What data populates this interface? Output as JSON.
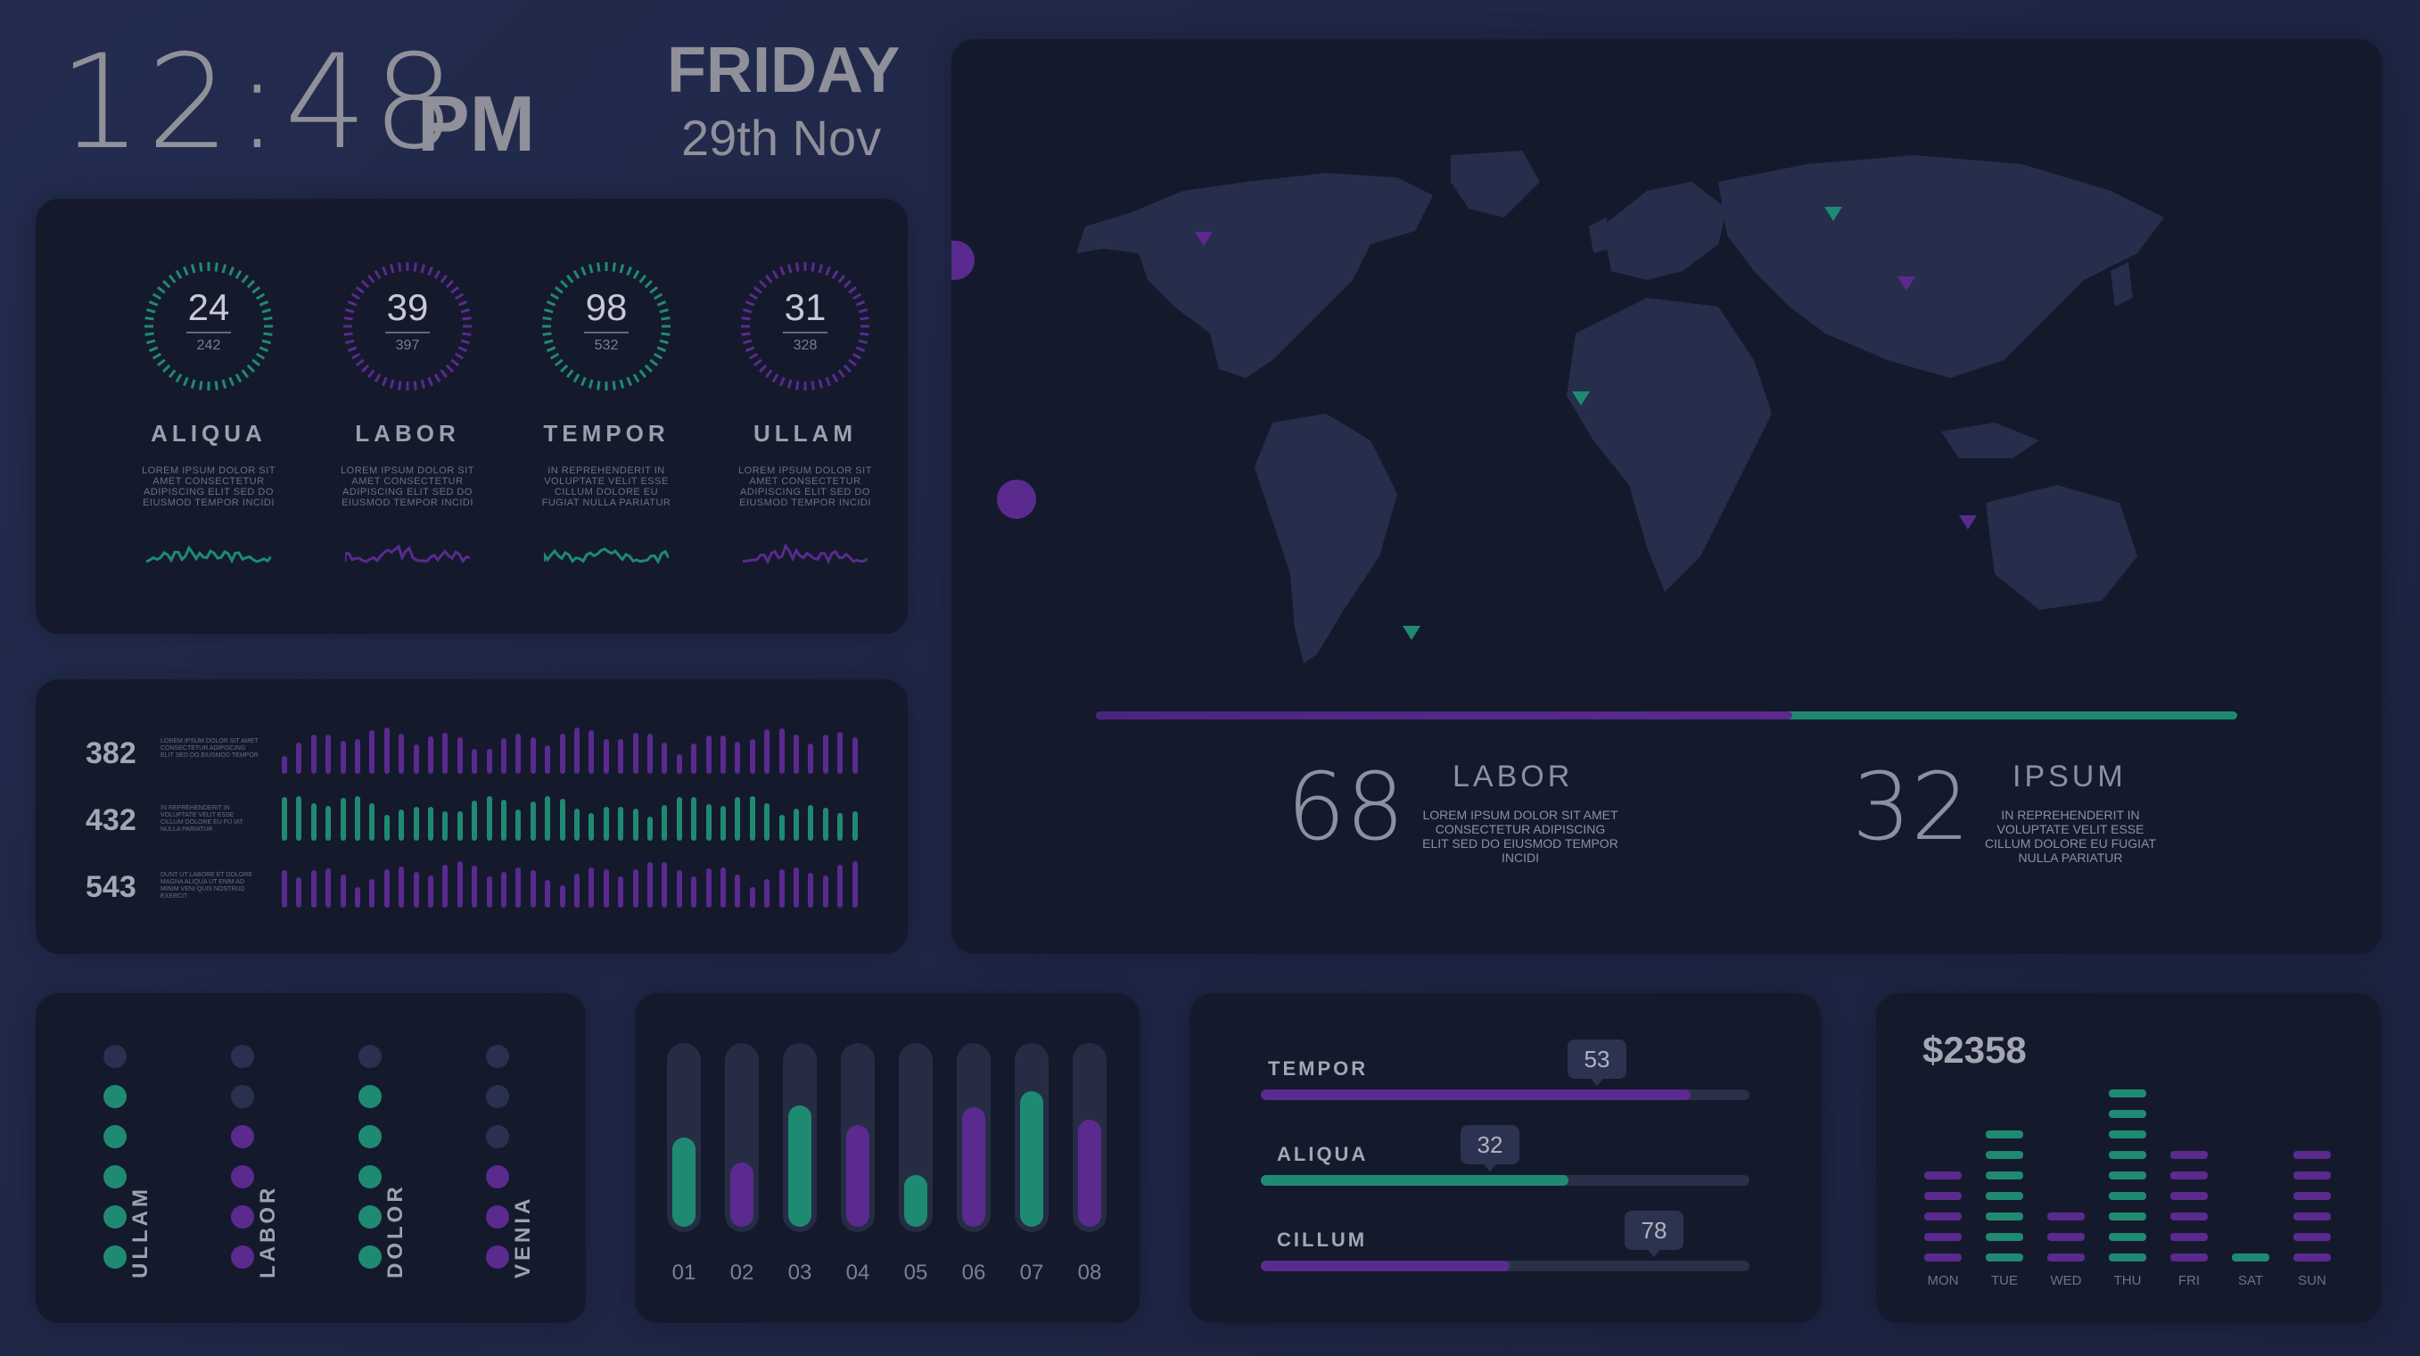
{
  "clock": {
    "time": "12:48",
    "ampm": "PM",
    "day": "FRIDAY",
    "date": "29th Nov"
  },
  "colors": {
    "teal": "#1f8a72",
    "purple": "#5a2a8f",
    "panel": "#141a2c",
    "background": "#1f2747"
  },
  "gauges": [
    {
      "value": "24",
      "sub": "242",
      "title": "ALIQUA",
      "desc": "LOREM IPSUM DOLOR SIT AMET CONSECTETUR ADIPISCING ELIT SED DO EIUSMOD TEMPOR INCIDI",
      "color": "teal"
    },
    {
      "value": "39",
      "sub": "397",
      "title": "LABOR",
      "desc": "LOREM IPSUM DOLOR SIT AMET CONSECTETUR ADIPISCING ELIT SED DO EIUSMOD TEMPOR INCIDI",
      "color": "purple"
    },
    {
      "value": "98",
      "sub": "532",
      "title": "TEMPOR",
      "desc": "IN REPREHENDERIT IN VOLUPTATE VELIT ESSE CILLUM DOLORE EU FUGIAT NULLA PARIATUR",
      "color": "teal"
    },
    {
      "value": "31",
      "sub": "328",
      "title": "ULLAM",
      "desc": "LOREM IPSUM DOLOR SIT AMET CONSECTETUR ADIPISCING ELIT SED DO EIUSMOD TEMPOR INCIDI",
      "color": "purple"
    }
  ],
  "bar_rows": [
    {
      "value": "382",
      "desc": "LOREM IPSUM DOLOR SIT AMET CONSECTETUR ADIPISCING ELIT SED DO EIUSMOD TEMPOR",
      "color": "purple"
    },
    {
      "value": "432",
      "desc": "IN REPREHENDERIT IN VOLUPTATE VELIT ESSE CILLUM DOLORE EU FU IAT NULLA PARIATUR",
      "color": "teal"
    },
    {
      "value": "543",
      "desc": "DUNT UT LABORE ET DOLORE MAGNA ALIQUA UT ENIM AD MINIM VENI QUIS NOSTRUD EXERCIT",
      "color": "purple"
    }
  ],
  "map": {
    "progress": 0.61,
    "left": {
      "value": "68",
      "title": "LABOR",
      "desc": "LOREM IPSUM DOLOR SIT AMET CONSECTETUR ADIPISCING ELIT SED DO EIUSMOD TEMPOR INCIDI"
    },
    "right": {
      "value": "32",
      "title": "IPSUM",
      "desc": "IN REPREHENDERIT IN VOLUPTATE VELIT ESSE CILLUM DOLORE EU FUGIAT NULLA PARIATUR"
    },
    "pins": [
      "purple",
      "purple",
      "teal",
      "teal",
      "purple",
      "teal"
    ]
  },
  "dot_columns": [
    {
      "label": "ULLAM",
      "active": 5,
      "color": "teal"
    },
    {
      "label": "LABOR",
      "active": 4,
      "color": "purple"
    },
    {
      "label": "DOLOR",
      "active": 5,
      "color": "teal"
    },
    {
      "label": "VENIA",
      "active": 3,
      "color": "purple"
    }
  ],
  "vbars": [
    {
      "label": "01",
      "value": 0.5,
      "color": "teal"
    },
    {
      "label": "02",
      "value": 0.36,
      "color": "purple"
    },
    {
      "label": "03",
      "value": 0.68,
      "color": "teal"
    },
    {
      "label": "04",
      "value": 0.57,
      "color": "purple"
    },
    {
      "label": "05",
      "value": 0.29,
      "color": "teal"
    },
    {
      "label": "06",
      "value": 0.67,
      "color": "purple"
    },
    {
      "label": "07",
      "value": 0.76,
      "color": "teal"
    },
    {
      "label": "08",
      "value": 0.6,
      "color": "purple"
    }
  ],
  "hbars": [
    {
      "label": "TEMPOR",
      "value": "53",
      "fill": 0.88,
      "color": "purple"
    },
    {
      "label": "ALIQUA",
      "value": "32",
      "fill": 0.63,
      "color": "teal"
    },
    {
      "label": "CILLUM",
      "value": "78",
      "fill": 0.51,
      "color": "purple"
    }
  ],
  "weekly": {
    "price": "$2358",
    "days": [
      {
        "label": "MON",
        "level": 5,
        "color": "purple"
      },
      {
        "label": "TUE",
        "level": 7,
        "color": "teal"
      },
      {
        "label": "WED",
        "level": 3,
        "color": "purple"
      },
      {
        "label": "THU",
        "level": 9,
        "color": "teal"
      },
      {
        "label": "FRI",
        "level": 6,
        "color": "purple"
      },
      {
        "label": "SAT",
        "level": 1,
        "color": "teal"
      },
      {
        "label": "SUN",
        "level": 6,
        "color": "purple"
      }
    ]
  }
}
